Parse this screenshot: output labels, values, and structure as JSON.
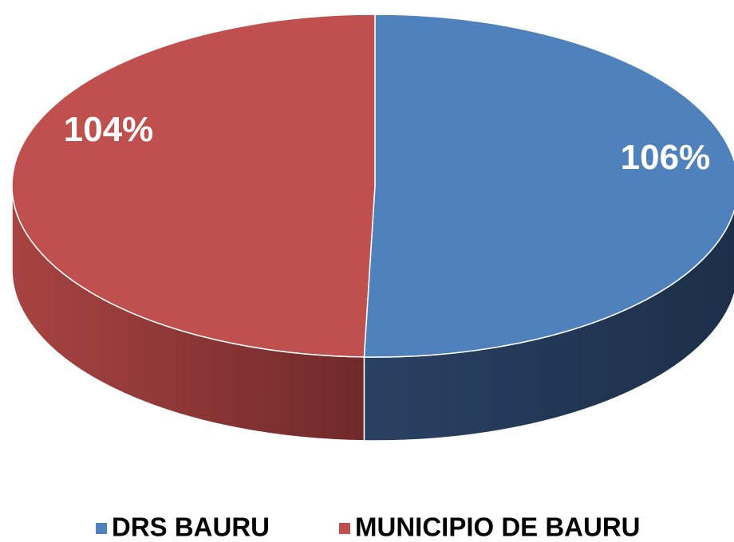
{
  "chart_data": {
    "type": "pie",
    "categories": [
      "DRS BAURU",
      "MUNICIPIO DE BAURU"
    ],
    "values": [
      106,
      104
    ],
    "value_labels": [
      "106%",
      "104%"
    ],
    "colors": [
      "#4f81bd",
      "#c0504d"
    ],
    "legend": "bottom"
  }
}
